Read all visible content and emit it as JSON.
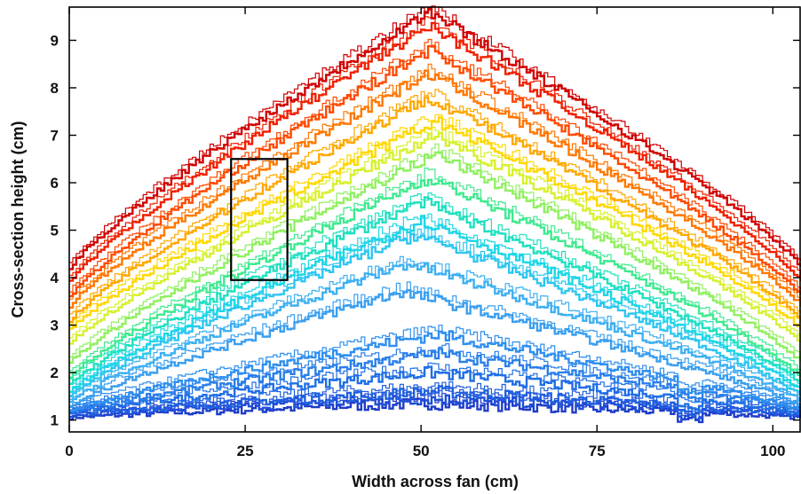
{
  "chart_data": {
    "type": "line",
    "title": "",
    "xlabel": "Width across fan (cm)",
    "ylabel": "Cross-section height (cm)",
    "xlim": [
      0,
      104
    ],
    "ylim": [
      0.75,
      9.7
    ],
    "xticks": [
      0,
      25,
      50,
      75,
      100
    ],
    "yticks": [
      1,
      2,
      3,
      4,
      5,
      6,
      7,
      8,
      9
    ],
    "grid": false,
    "legend": "none",
    "colormap": "jet (early profiles blue, late profiles red)",
    "inset_box": {
      "x0": 23,
      "x1": 31,
      "y0": 3.95,
      "y1": 6.5
    },
    "profile_anchors": [
      {
        "x": 0,
        "y": 1.05
      },
      {
        "x": 0,
        "y": 1.1
      },
      {
        "x": 0,
        "y": 1.15
      },
      {
        "x": 0,
        "y": 1.2
      },
      {
        "x": 0,
        "y": 1.4
      },
      {
        "x": 0,
        "y": 1.55
      },
      {
        "x": 0,
        "y": 1.7
      },
      {
        "x": 0,
        "y": 2.0
      },
      {
        "x": 0,
        "y": 2.3
      },
      {
        "x": 0,
        "y": 2.7
      },
      {
        "x": 0,
        "y": 3.0
      },
      {
        "x": 0,
        "y": 3.4
      },
      {
        "x": 0,
        "y": 3.8
      },
      {
        "x": 0,
        "y": 4.2
      }
    ],
    "series": [
      {
        "peak_x": 50,
        "peak_y": 1.35,
        "edge_y": 1.05,
        "color": "#1e3cc8"
      },
      {
        "peak_x": 51,
        "peak_y": 1.45,
        "edge_y": 1.1,
        "color": "#1f4ed8"
      },
      {
        "peak_x": 52,
        "peak_y": 1.6,
        "edge_y": 1.12,
        "color": "#2060e0"
      },
      {
        "peak_x": 51,
        "peak_y": 2.0,
        "edge_y": 1.15,
        "color": "#1f6fe6"
      },
      {
        "peak_x": 52,
        "peak_y": 2.4,
        "edge_y": 1.18,
        "color": "#2a7fea"
      },
      {
        "peak_x": 52,
        "peak_y": 2.8,
        "edge_y": 1.2,
        "color": "#2f8fef"
      },
      {
        "peak_x": 47,
        "peak_y": 3.7,
        "edge_y": 1.3,
        "color": "#3a9ff0"
      },
      {
        "peak_x": 48,
        "peak_y": 4.3,
        "edge_y": 1.4,
        "color": "#3fb0f2"
      },
      {
        "peak_x": 49,
        "peak_y": 4.9,
        "edge_y": 1.5,
        "color": "#2fc6f0"
      },
      {
        "peak_x": 50,
        "peak_y": 5.2,
        "edge_y": 1.6,
        "color": "#1dd6e6"
      },
      {
        "peak_x": 50,
        "peak_y": 5.6,
        "edge_y": 1.75,
        "color": "#20e0c0"
      },
      {
        "peak_x": 51,
        "peak_y": 6.1,
        "edge_y": 1.9,
        "color": "#40ea90"
      },
      {
        "peak_x": 52,
        "peak_y": 6.6,
        "edge_y": 2.2,
        "color": "#90f060"
      },
      {
        "peak_x": 52,
        "peak_y": 7.0,
        "edge_y": 2.6,
        "color": "#d8f030"
      },
      {
        "peak_x": 52,
        "peak_y": 7.3,
        "edge_y": 2.9,
        "color": "#ffd800"
      },
      {
        "peak_x": 51,
        "peak_y": 7.8,
        "edge_y": 3.1,
        "color": "#ffa800"
      },
      {
        "peak_x": 51,
        "peak_y": 8.3,
        "edge_y": 3.4,
        "color": "#ff7800"
      },
      {
        "peak_x": 51,
        "peak_y": 8.8,
        "edge_y": 3.6,
        "color": "#ff4a00"
      },
      {
        "peak_x": 51,
        "peak_y": 9.3,
        "edge_y": 3.9,
        "color": "#f02000"
      },
      {
        "peak_x": 51,
        "peak_y": 9.6,
        "edge_y": 4.2,
        "color": "#d00000"
      }
    ]
  }
}
